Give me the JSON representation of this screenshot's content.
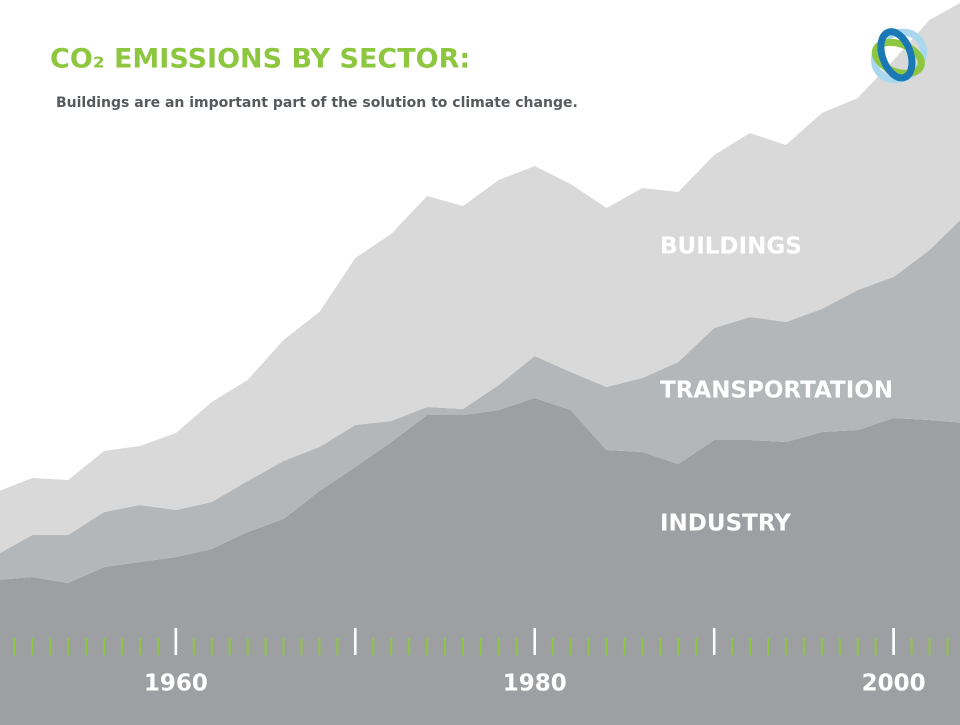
{
  "chart_data": {
    "type": "stacked-area",
    "title": "CO₂ EMISSIONS BY SECTOR:",
    "subtitle": "Buildings are an important part of the solution to climate change.",
    "x": [
      1950,
      1952,
      1954,
      1956,
      1958,
      1960,
      1962,
      1964,
      1966,
      1968,
      1970,
      1972,
      1974,
      1976,
      1978,
      1980,
      1982,
      1984,
      1986,
      1988,
      1990,
      1992,
      1994,
      1996,
      1998,
      2000,
      2002,
      2004
    ],
    "series": [
      {
        "name": "INDUSTRY",
        "color": "#9d9fa3",
        "values": [
          145,
          148,
          142,
          158,
          163,
          168,
          176,
          193,
          206,
          234,
          258,
          283,
          310,
          310,
          315,
          327,
          315,
          275,
          273,
          261,
          285,
          285,
          283,
          293,
          295,
          307,
          305,
          302
        ]
      },
      {
        "name": "TRANSPORTATION",
        "color": "#b4b7ba",
        "values": [
          25,
          42,
          48,
          55,
          57,
          47,
          47,
          51,
          58,
          44,
          42,
          21,
          8,
          6,
          25,
          42,
          38,
          63,
          74,
          102,
          112,
          123,
          120,
          123,
          140,
          141,
          170,
          208
        ]
      },
      {
        "name": "BUILDINGS",
        "color": "#d9d9da",
        "values": [
          63,
          57,
          55,
          61,
          59,
          77,
          100,
          101,
          121,
          135,
          167,
          187,
          211,
          203,
          205,
          190,
          188,
          179,
          190,
          170,
          173,
          184,
          177,
          196,
          192,
          217,
          230,
          215
        ]
      }
    ],
    "xlim": [
      1950.2,
      2003.7
    ],
    "ylim": [
      0,
      725
    ],
    "xticks": [
      1960,
      1980,
      2000
    ]
  }
}
